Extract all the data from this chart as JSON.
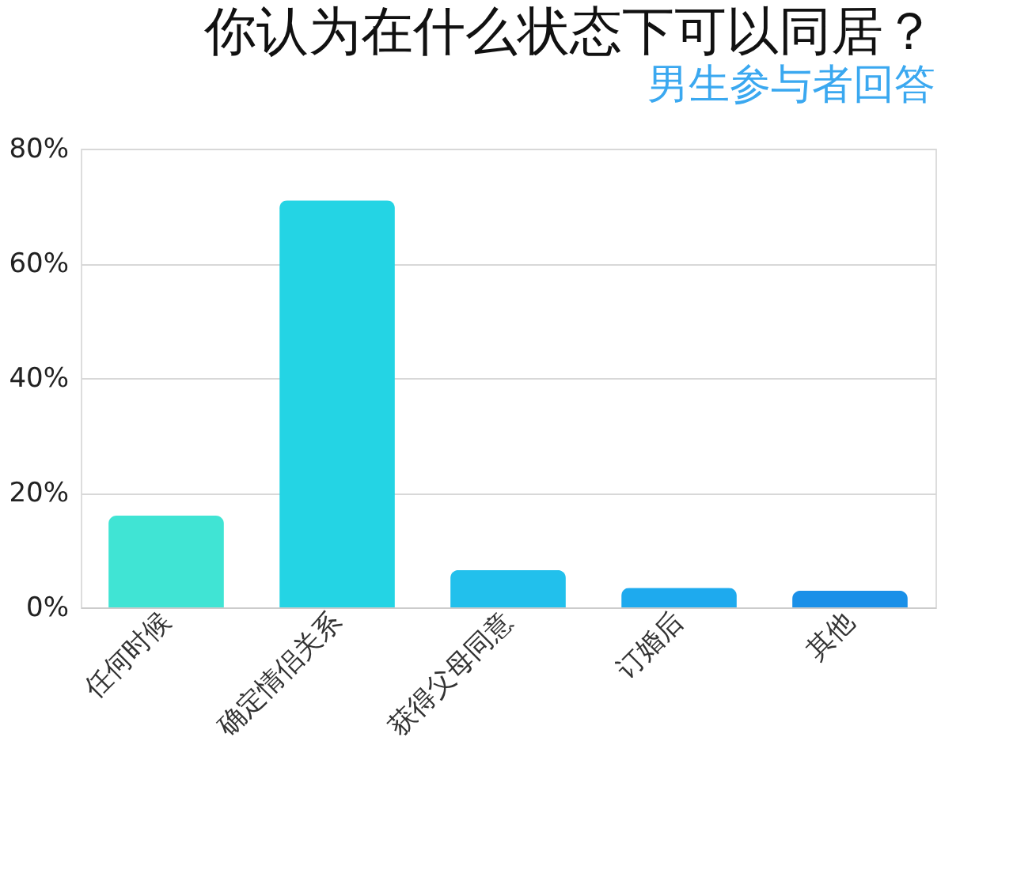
{
  "chart_data": {
    "type": "bar",
    "title": "你认为在什么状态下可以同居？",
    "subtitle": "男生参与者回答",
    "categories": [
      "任何时候",
      "确定情侣关系",
      "获得父母同意",
      "订婚后",
      "其他"
    ],
    "values": [
      16,
      71,
      6.5,
      3.4,
      2.9
    ],
    "colors": [
      "#40e4d4",
      "#24d4e4",
      "#22c0ec",
      "#1eaaee",
      "#1a90e8"
    ],
    "ylim": [
      0,
      80
    ],
    "yticks": [
      {
        "value": 0,
        "label": "0%"
      },
      {
        "value": 20,
        "label": "20%"
      },
      {
        "value": 40,
        "label": "40%"
      },
      {
        "value": 60,
        "label": "60%"
      },
      {
        "value": 80,
        "label": "80%"
      }
    ],
    "grid": "y"
  }
}
